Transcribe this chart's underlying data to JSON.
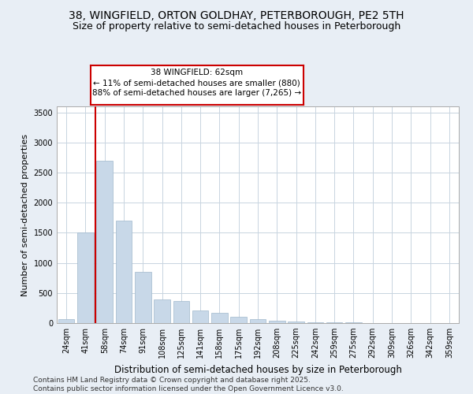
{
  "title_line1": "38, WINGFIELD, ORTON GOLDHAY, PETERBOROUGH, PE2 5TH",
  "title_line2": "Size of property relative to semi-detached houses in Peterborough",
  "xlabel": "Distribution of semi-detached houses by size in Peterborough",
  "ylabel": "Number of semi-detached properties",
  "categories": [
    "24sqm",
    "41sqm",
    "58sqm",
    "74sqm",
    "91sqm",
    "108sqm",
    "125sqm",
    "141sqm",
    "158sqm",
    "175sqm",
    "192sqm",
    "208sqm",
    "225sqm",
    "242sqm",
    "259sqm",
    "275sqm",
    "292sqm",
    "309sqm",
    "326sqm",
    "342sqm",
    "359sqm"
  ],
  "values": [
    65,
    1500,
    2700,
    1700,
    850,
    390,
    370,
    210,
    170,
    100,
    70,
    35,
    20,
    15,
    10,
    8,
    6,
    4,
    3,
    2,
    1
  ],
  "bar_color": "#c8d8e8",
  "bar_edge_color": "#a0b8cc",
  "vline_color": "#cc0000",
  "annotation_text": "38 WINGFIELD: 62sqm\n← 11% of semi-detached houses are smaller (880)\n88% of semi-detached houses are larger (7,265) →",
  "annotation_box_color": "#ffffff",
  "annotation_box_edge_color": "#cc0000",
  "ylim": [
    0,
    3600
  ],
  "yticks": [
    0,
    500,
    1000,
    1500,
    2000,
    2500,
    3000,
    3500
  ],
  "footer_text": "Contains HM Land Registry data © Crown copyright and database right 2025.\nContains public sector information licensed under the Open Government Licence v3.0.",
  "bg_color": "#e8eef5",
  "plot_bg_color": "#ffffff",
  "grid_color": "#c8d4e0",
  "title_fontsize": 10,
  "subtitle_fontsize": 9,
  "tick_fontsize": 7,
  "ylabel_fontsize": 8,
  "xlabel_fontsize": 8.5,
  "footer_fontsize": 6.5,
  "annot_fontsize": 7.5
}
